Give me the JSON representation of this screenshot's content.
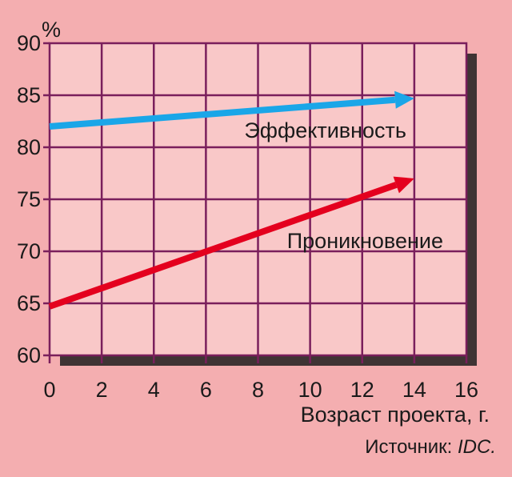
{
  "chart_data": {
    "type": "line",
    "ylabel": "%",
    "xlabel": "Возраст проекта, г.",
    "source": {
      "prefix": "Источник: ",
      "name": "IDC."
    },
    "xlim": [
      0,
      16
    ],
    "ylim": [
      60,
      90
    ],
    "xticks": [
      "0",
      "2",
      "4",
      "6",
      "8",
      "10",
      "12",
      "14",
      "16"
    ],
    "yticks": [
      "60",
      "65",
      "70",
      "75",
      "80",
      "85",
      "90"
    ],
    "grid": true,
    "series": [
      {
        "name": "Эффективность",
        "color": "#1aa6e8",
        "x": [
          0,
          14
        ],
        "y": [
          82,
          84.7
        ]
      },
      {
        "name": "Проникновение",
        "color": "#e4001e",
        "x": [
          0,
          14
        ],
        "y": [
          64.7,
          77
        ]
      }
    ],
    "colors": {
      "background": "#f4aeb0",
      "plot": "#f9c8c8",
      "grid": "#7a1f5c",
      "shadow": "#1e1e1e"
    }
  }
}
